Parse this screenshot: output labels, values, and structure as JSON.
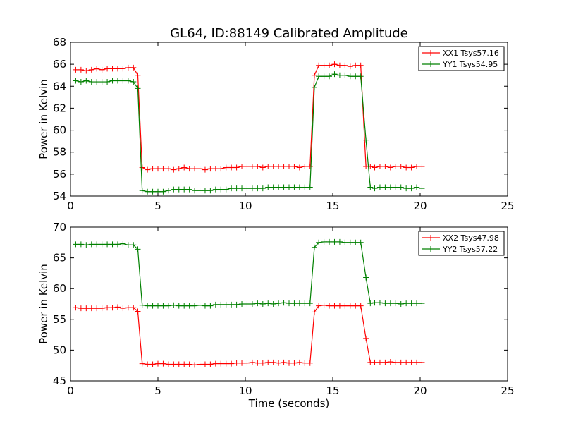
{
  "figure": {
    "title": "GL64, ID:88149 Calibrated Amplitude",
    "background": "#ffffff"
  },
  "chart_data": [
    {
      "type": "line",
      "title": "GL64, ID:88149 Calibrated Amplitude",
      "xlabel": "",
      "ylabel": "Power in Kelvin",
      "xlim": [
        0,
        25
      ],
      "ylim": [
        54,
        68
      ],
      "x_ticks": [
        0,
        5,
        10,
        15,
        20,
        25
      ],
      "y_ticks": [
        54,
        56,
        58,
        60,
        62,
        64,
        66,
        68
      ],
      "grid": false,
      "legend_position": "top-right",
      "marker": "plus",
      "x": [
        0.3,
        0.6,
        0.9,
        1.2,
        1.5,
        1.8,
        2.1,
        2.4,
        2.7,
        3.0,
        3.3,
        3.6,
        3.85,
        4.1,
        4.4,
        4.7,
        5.0,
        5.3,
        5.6,
        5.9,
        6.2,
        6.5,
        6.8,
        7.1,
        7.4,
        7.7,
        8.0,
        8.3,
        8.6,
        8.9,
        9.2,
        9.5,
        9.8,
        10.1,
        10.4,
        10.7,
        11.0,
        11.3,
        11.6,
        11.9,
        12.2,
        12.5,
        12.8,
        13.1,
        13.4,
        13.7,
        13.95,
        14.2,
        14.5,
        14.8,
        15.1,
        15.4,
        15.7,
        16.0,
        16.3,
        16.6,
        16.9,
        17.15,
        17.4,
        17.7,
        18.0,
        18.3,
        18.6,
        18.9,
        19.2,
        19.5,
        19.8,
        20.1
      ],
      "series": [
        {
          "name": "XX1 Tsys57.16",
          "color": "#ff0000",
          "values": [
            65.5,
            65.5,
            65.4,
            65.5,
            65.6,
            65.5,
            65.6,
            65.6,
            65.6,
            65.6,
            65.7,
            65.7,
            65.0,
            56.6,
            56.4,
            56.5,
            56.5,
            56.5,
            56.5,
            56.4,
            56.5,
            56.6,
            56.5,
            56.5,
            56.5,
            56.4,
            56.5,
            56.5,
            56.5,
            56.6,
            56.6,
            56.6,
            56.7,
            56.7,
            56.7,
            56.7,
            56.6,
            56.7,
            56.7,
            56.7,
            56.7,
            56.7,
            56.7,
            56.6,
            56.7,
            56.7,
            65.0,
            65.9,
            65.9,
            65.9,
            66.0,
            65.9,
            65.9,
            65.8,
            65.9,
            65.9,
            56.7,
            56.7,
            56.6,
            56.7,
            56.7,
            56.6,
            56.7,
            56.7,
            56.6,
            56.6,
            56.7,
            56.7
          ]
        },
        {
          "name": "YY1 Tsys54.95",
          "color": "#008000",
          "values": [
            64.5,
            64.4,
            64.5,
            64.4,
            64.4,
            64.4,
            64.4,
            64.5,
            64.5,
            64.5,
            64.5,
            64.4,
            63.8,
            54.5,
            54.4,
            54.4,
            54.4,
            54.4,
            54.5,
            54.6,
            54.6,
            54.6,
            54.6,
            54.5,
            54.5,
            54.5,
            54.5,
            54.6,
            54.6,
            54.6,
            54.7,
            54.7,
            54.7,
            54.7,
            54.7,
            54.7,
            54.7,
            54.8,
            54.8,
            54.8,
            54.8,
            54.8,
            54.8,
            54.8,
            54.8,
            54.8,
            63.9,
            64.9,
            64.9,
            64.9,
            65.1,
            65.0,
            65.0,
            64.9,
            64.9,
            64.9,
            59.1,
            54.8,
            54.7,
            54.8,
            54.8,
            54.8,
            54.8,
            54.8,
            54.7,
            54.7,
            54.8,
            54.7
          ]
        }
      ]
    },
    {
      "type": "line",
      "title": "",
      "xlabel": "Time (seconds)",
      "ylabel": "Power in Kelvin",
      "xlim": [
        0,
        25
      ],
      "ylim": [
        45,
        70
      ],
      "x_ticks": [
        0,
        5,
        10,
        15,
        20,
        25
      ],
      "y_ticks": [
        45,
        50,
        55,
        60,
        65,
        70
      ],
      "grid": false,
      "legend_position": "top-right",
      "marker": "plus",
      "x": [
        0.3,
        0.6,
        0.9,
        1.2,
        1.5,
        1.8,
        2.1,
        2.4,
        2.7,
        3.0,
        3.3,
        3.6,
        3.85,
        4.1,
        4.4,
        4.7,
        5.0,
        5.3,
        5.6,
        5.9,
        6.2,
        6.5,
        6.8,
        7.1,
        7.4,
        7.7,
        8.0,
        8.3,
        8.6,
        8.9,
        9.2,
        9.5,
        9.8,
        10.1,
        10.4,
        10.7,
        11.0,
        11.3,
        11.6,
        11.9,
        12.2,
        12.5,
        12.8,
        13.1,
        13.4,
        13.7,
        13.95,
        14.2,
        14.5,
        14.8,
        15.1,
        15.4,
        15.7,
        16.0,
        16.3,
        16.6,
        16.9,
        17.15,
        17.4,
        17.7,
        18.0,
        18.3,
        18.6,
        18.9,
        19.2,
        19.5,
        19.8,
        20.1
      ],
      "series": [
        {
          "name": "XX2 Tsys47.98",
          "color": "#ff0000",
          "values": [
            56.9,
            56.8,
            56.8,
            56.8,
            56.8,
            56.8,
            56.9,
            56.9,
            57.0,
            56.8,
            56.9,
            56.9,
            56.3,
            47.8,
            47.7,
            47.7,
            47.8,
            47.8,
            47.7,
            47.7,
            47.7,
            47.7,
            47.7,
            47.6,
            47.7,
            47.7,
            47.7,
            47.8,
            47.8,
            47.8,
            47.8,
            47.9,
            47.9,
            47.9,
            48.0,
            47.9,
            47.9,
            48.0,
            48.0,
            47.9,
            48.0,
            47.9,
            47.9,
            48.0,
            47.9,
            47.9,
            56.2,
            57.2,
            57.3,
            57.2,
            57.2,
            57.2,
            57.2,
            57.2,
            57.2,
            57.2,
            51.9,
            48.0,
            48.0,
            48.0,
            48.0,
            48.1,
            48.0,
            48.0,
            48.0,
            48.0,
            48.0,
            48.0
          ]
        },
        {
          "name": "YY2 Tsys57.22",
          "color": "#008000",
          "values": [
            67.2,
            67.2,
            67.1,
            67.2,
            67.2,
            67.2,
            67.2,
            67.2,
            67.2,
            67.3,
            67.1,
            67.1,
            66.4,
            57.3,
            57.2,
            57.2,
            57.2,
            57.2,
            57.2,
            57.3,
            57.2,
            57.2,
            57.2,
            57.2,
            57.3,
            57.2,
            57.2,
            57.4,
            57.4,
            57.4,
            57.4,
            57.4,
            57.5,
            57.5,
            57.5,
            57.6,
            57.5,
            57.6,
            57.5,
            57.6,
            57.7,
            57.6,
            57.6,
            57.6,
            57.6,
            57.6,
            66.7,
            67.5,
            67.6,
            67.6,
            67.6,
            67.6,
            67.5,
            67.5,
            67.5,
            67.5,
            61.8,
            57.6,
            57.7,
            57.7,
            57.6,
            57.6,
            57.6,
            57.5,
            57.6,
            57.6,
            57.6,
            57.6
          ]
        }
      ]
    }
  ]
}
